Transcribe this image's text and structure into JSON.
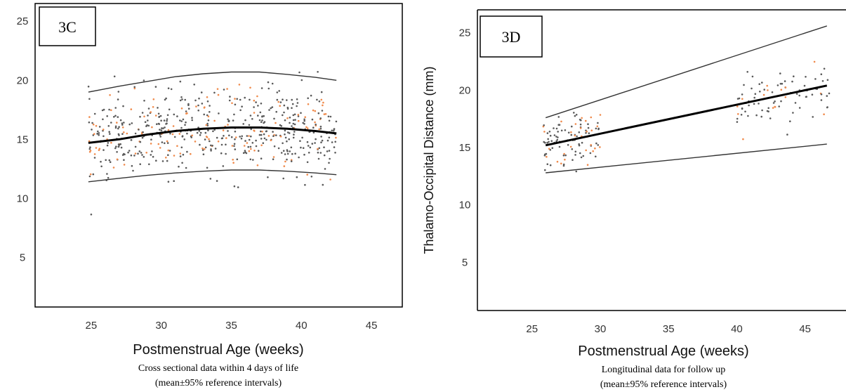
{
  "chart_data": [
    {
      "type": "scatter",
      "panel_label": "3C",
      "xlabel": "Postmenstrual Age (weeks)",
      "ylabel": "",
      "caption_lines": [
        "Cross sectional data within 4 days of life",
        "(mean±95% reference intervals)"
      ],
      "xlim": [
        21,
        47.2
      ],
      "ylim": [
        0.8,
        26.5
      ],
      "xticks": [
        25,
        30,
        35,
        40,
        45
      ],
      "yticks": [
        5,
        10,
        15,
        20,
        25
      ],
      "grid": false,
      "data_x_range": [
        24.8,
        42.5
      ],
      "colors": {
        "dots_grey": "#5a5a5a",
        "dots_orange": "#f08a4b",
        "mean": "#000000",
        "bounds": "#333333"
      },
      "series": [
        {
          "role": "mean",
          "x": [
            24.8,
            27,
            29,
            31,
            33,
            35,
            36,
            37,
            39,
            41,
            42.5
          ],
          "y": [
            14.7,
            15.0,
            15.4,
            15.7,
            15.9,
            16.0,
            16.0,
            16.0,
            15.9,
            15.7,
            15.5
          ]
        },
        {
          "role": "upper-95",
          "x": [
            24.8,
            27,
            29,
            31,
            33,
            35,
            36,
            37,
            39,
            41,
            42.5
          ],
          "y": [
            19.0,
            19.5,
            19.9,
            20.3,
            20.55,
            20.7,
            20.7,
            20.7,
            20.5,
            20.25,
            20.0
          ]
        },
        {
          "role": "lower-95",
          "x": [
            24.8,
            27,
            29,
            31,
            33,
            35,
            36,
            37,
            39,
            41,
            42.5
          ],
          "y": [
            11.4,
            11.7,
            11.95,
            12.15,
            12.3,
            12.4,
            12.4,
            12.4,
            12.3,
            12.15,
            12.0
          ]
        }
      ],
      "scatter_points": 620
    },
    {
      "type": "scatter",
      "panel_label": "3D",
      "xlabel": "Postmenstrual Age (weeks)",
      "ylabel": "Thalamo-Occipital Distance (mm)",
      "caption_lines": [
        "Longitudinal data for follow up",
        "(mean±95% reference intervals)"
      ],
      "xlim": [
        21,
        48
      ],
      "ylim": [
        0.8,
        27
      ],
      "xticks": [
        25,
        30,
        35,
        40,
        45
      ],
      "yticks": [
        5,
        10,
        15,
        20,
        25
      ],
      "grid": false,
      "colors": {
        "dots_grey": "#5a5a5a",
        "dots_orange": "#f08a4b",
        "mean": "#000000",
        "bounds": "#333333"
      },
      "series": [
        {
          "role": "mean",
          "x": [
            26,
            46.6
          ],
          "y": [
            15.2,
            20.4
          ]
        },
        {
          "role": "upper-95",
          "x": [
            26,
            46.6
          ],
          "y": [
            17.6,
            25.6
          ]
        },
        {
          "role": "lower-95",
          "x": [
            26,
            46.6
          ],
          "y": [
            12.8,
            15.3
          ]
        }
      ],
      "clusters": [
        {
          "x_range": [
            25.8,
            30
          ],
          "y_center": 15.6,
          "y_spread": 2.2,
          "n": 110
        },
        {
          "x_range": [
            40,
            46.8
          ],
          "y_center": 19.3,
          "y_spread": 2.0,
          "n": 90
        }
      ]
    }
  ]
}
